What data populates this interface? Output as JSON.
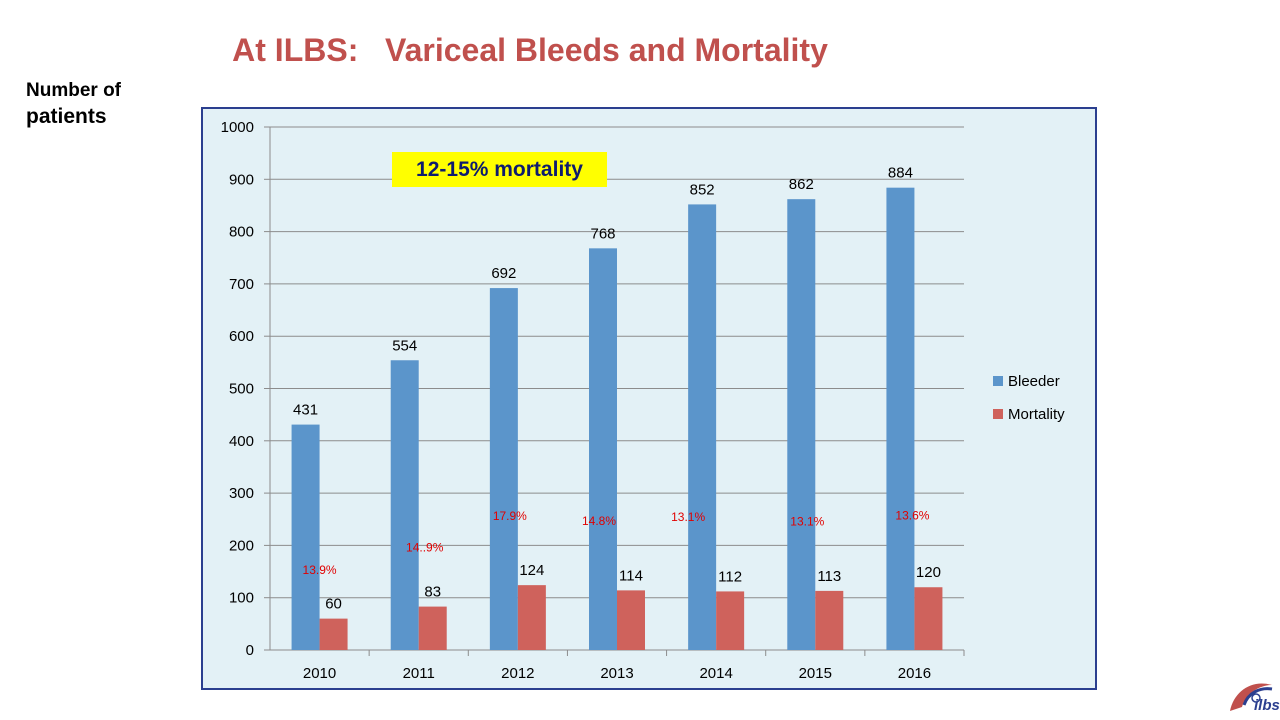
{
  "slide": {
    "title": "At ILBS:   Variceal Bleeds and Mortality",
    "ylabel_line1": "Number of",
    "ylabel_line2": "patients",
    "annotation": "12-15% mortality",
    "logo_text": "ilbs"
  },
  "colors": {
    "title": "#c0504d",
    "bleeder": "#5b95cb",
    "mortality": "#cf625c",
    "plot_bg": "#e3f1f6",
    "frame": "#2b3f8f",
    "percent_label": "#e00000",
    "annotation_bg": "#ffff00"
  },
  "chart_data": {
    "type": "bar",
    "categories": [
      "2010",
      "2011",
      "2012",
      "2013",
      "2014",
      "2015",
      "2016"
    ],
    "series": [
      {
        "name": "Bleeder",
        "values": [
          431,
          554,
          692,
          768,
          852,
          862,
          884
        ]
      },
      {
        "name": "Mortality",
        "values": [
          60,
          83,
          124,
          114,
          112,
          113,
          120
        ]
      }
    ],
    "percent_labels": [
      "13.9%",
      "14..9%",
      "17.9%",
      "14.8%",
      "13.1%",
      "13.1%",
      "13.6%"
    ],
    "ylim": [
      0,
      1000
    ],
    "yticks": [
      0,
      100,
      200,
      300,
      400,
      500,
      600,
      700,
      800,
      900,
      1000
    ],
    "grid": true,
    "legend_position": "right"
  }
}
